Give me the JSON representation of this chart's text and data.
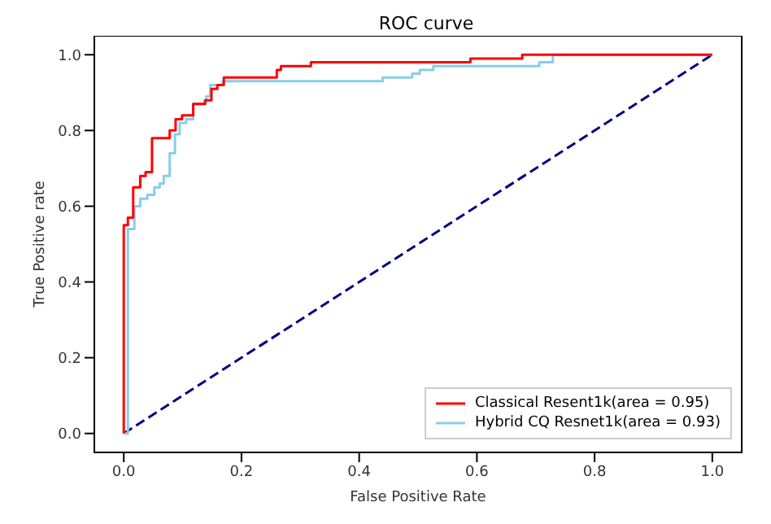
{
  "chart_data": {
    "type": "line",
    "title": "ROC curve",
    "xlabel": "False Positive Rate",
    "ylabel": "True Positive rate",
    "xlim": [
      -0.05,
      1.05
    ],
    "ylim": [
      -0.05,
      1.05
    ],
    "xticks": [
      {
        "value": 0,
        "label": "0.0"
      },
      0.2,
      0.4,
      0.6,
      0.8,
      {
        "value": 1,
        "label": "1.0"
      }
    ],
    "yticks": [
      {
        "value": 0,
        "label": "0.0"
      },
      0.2,
      0.4,
      0.6,
      0.8,
      {
        "value": 1,
        "label": "1.0"
      }
    ],
    "legend": "bottom right",
    "grid": false,
    "marker": "none",
    "series": [
      {
        "name": "Classical Resent1k(area = 0.95)",
        "color": "#ff0000",
        "line_style": "solid",
        "x": [
          0,
          0,
          0.007,
          0.007,
          0.016,
          0.016,
          0.028,
          0.028,
          0.037,
          0.037,
          0.048,
          0.048,
          0.078,
          0.078,
          0.088,
          0.088,
          0.099,
          0.099,
          0.118,
          0.118,
          0.138,
          0.138,
          0.149,
          0.149,
          0.159,
          0.159,
          0.17,
          0.17,
          0.26,
          0.26,
          0.267,
          0.267,
          0.318,
          0.318,
          0.589,
          0.589,
          0.677,
          0.677,
          1
        ],
        "values": [
          0,
          0.55,
          0.55,
          0.57,
          0.57,
          0.65,
          0.65,
          0.68,
          0.68,
          0.69,
          0.69,
          0.78,
          0.78,
          0.8,
          0.8,
          0.83,
          0.83,
          0.84,
          0.84,
          0.87,
          0.87,
          0.88,
          0.88,
          0.91,
          0.91,
          0.92,
          0.92,
          0.94,
          0.94,
          0.96,
          0.96,
          0.97,
          0.97,
          0.98,
          0.98,
          0.99,
          0.99,
          1,
          1
        ]
      },
      {
        "name": "Hybrid CQ Resnet1k(area = 0.93)",
        "color": "#87ceeb",
        "line_style": "solid",
        "x": [
          0,
          0.007,
          0.007,
          0.018,
          0.018,
          0.028,
          0.028,
          0.04,
          0.04,
          0.052,
          0.052,
          0.061,
          0.061,
          0.068,
          0.068,
          0.078,
          0.078,
          0.087,
          0.087,
          0.095,
          0.095,
          0.106,
          0.106,
          0.118,
          0.118,
          0.14,
          0.14,
          0.147,
          0.147,
          0.168,
          0.168,
          0.44,
          0.44,
          0.49,
          0.49,
          0.503,
          0.503,
          0.526,
          0.526,
          0.706,
          0.706,
          0.729,
          0.729,
          1
        ],
        "values": [
          0,
          0,
          0.54,
          0.54,
          0.6,
          0.6,
          0.62,
          0.62,
          0.63,
          0.63,
          0.65,
          0.65,
          0.66,
          0.66,
          0.68,
          0.68,
          0.74,
          0.74,
          0.79,
          0.79,
          0.82,
          0.82,
          0.83,
          0.83,
          0.87,
          0.87,
          0.89,
          0.89,
          0.92,
          0.92,
          0.93,
          0.93,
          0.94,
          0.94,
          0.95,
          0.95,
          0.96,
          0.96,
          0.97,
          0.97,
          0.98,
          0.98,
          1,
          1
        ]
      },
      {
        "color": "#000080",
        "line_style": "dashed",
        "x": [
          0,
          1
        ],
        "values": [
          0,
          1
        ]
      }
    ]
  }
}
